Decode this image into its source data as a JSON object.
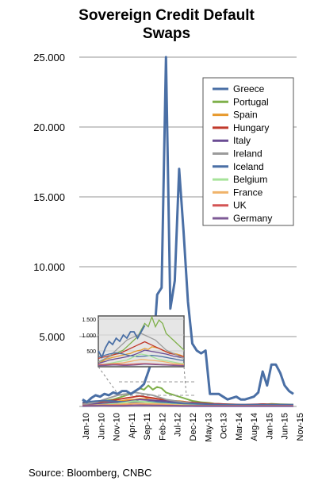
{
  "chart_data": {
    "type": "line",
    "title_lines": [
      "Sovereign Credit Default",
      "Swaps"
    ],
    "source": "Source: Bloomberg, CNBC",
    "ylim": [
      0,
      25000
    ],
    "y_ticks": [
      "5.000",
      "10.000",
      "15.000",
      "20.000",
      "25.000"
    ],
    "y_tick_values": [
      5000,
      10000,
      15000,
      20000,
      25000
    ],
    "x_tick_labels": [
      "Jan-10",
      "Jun-10",
      "Nov-10",
      "Apr-11",
      "Sep-11",
      "Feb-12",
      "Jul-12",
      "Dec-12",
      "May-13",
      "Oct-13",
      "Mar-14",
      "Aug-14",
      "Jan-15",
      "Jun-15",
      "Nov-15"
    ],
    "grid": true,
    "legend_position": "right",
    "series": [
      {
        "name": "Greece",
        "color": "#4a6fa5",
        "values": [
          500,
          300,
          600,
          800,
          700,
          900,
          800,
          1000,
          900,
          1100,
          1100,
          900,
          1100,
          1300,
          1600,
          2500,
          3500,
          8000,
          8500,
          25000,
          7000,
          9000,
          17000,
          12500,
          7500,
          4500,
          4000,
          3800,
          4000,
          900,
          900,
          900,
          700,
          500,
          600,
          700,
          500,
          500,
          600,
          700,
          1000,
          2500,
          1500,
          3000,
          3000,
          2400,
          1500,
          1100,
          900
        ]
      },
      {
        "name": "Portugal",
        "color": "#7fb04a",
        "values": [
          150,
          180,
          250,
          300,
          350,
          400,
          450,
          500,
          600,
          700,
          800,
          900,
          1100,
          1300,
          1200,
          1500,
          1200,
          1400,
          1300,
          1000,
          900,
          800,
          700,
          600,
          500,
          400,
          350,
          300,
          280,
          250,
          200,
          180,
          170,
          160,
          150,
          140,
          130,
          120,
          130,
          140,
          150,
          170,
          160,
          180,
          170,
          160,
          150,
          140,
          130
        ]
      },
      {
        "name": "Spain",
        "color": "#e79a2e",
        "values": [
          100,
          150,
          220,
          250,
          280,
          300,
          330,
          350,
          380,
          400,
          450,
          480,
          500,
          550,
          520,
          600,
          580,
          550,
          500,
          450,
          420,
          400,
          380,
          350,
          300,
          280,
          250,
          230,
          200,
          180,
          160,
          150,
          140,
          130,
          120,
          110,
          100,
          100,
          110,
          120,
          130,
          120,
          110,
          100,
          100,
          100,
          100,
          100,
          100
        ]
      },
      {
        "name": "Hungary",
        "color": "#c0392b",
        "values": [
          250,
          280,
          300,
          330,
          350,
          380,
          400,
          450,
          500,
          550,
          600,
          650,
          700,
          750,
          700,
          650,
          600,
          550,
          500,
          450,
          400,
          380,
          350,
          330,
          300,
          280,
          260,
          240,
          220,
          200,
          190,
          180,
          170,
          160,
          150,
          140,
          130,
          130,
          140,
          150,
          160,
          170,
          160,
          150,
          140,
          130,
          130,
          120,
          120
        ]
      },
      {
        "name": "Italy",
        "color": "#6a4c93",
        "values": [
          100,
          130,
          160,
          200,
          220,
          240,
          260,
          280,
          300,
          330,
          360,
          400,
          450,
          500,
          480,
          460,
          440,
          420,
          400,
          380,
          350,
          320,
          300,
          280,
          260,
          240,
          220,
          200,
          180,
          160,
          150,
          140,
          130,
          120,
          110,
          100,
          100,
          100,
          110,
          120,
          130,
          120,
          110,
          100,
          100,
          100,
          100,
          100,
          100
        ]
      },
      {
        "name": "Ireland",
        "color": "#9b9b9b",
        "values": [
          150,
          200,
          250,
          300,
          400,
          500,
          600,
          700,
          800,
          850,
          900,
          950,
          1000,
          950,
          900,
          850,
          800,
          700,
          600,
          500,
          450,
          400,
          350,
          300,
          250,
          200,
          180,
          160,
          140,
          120,
          110,
          100,
          100,
          90,
          80,
          70,
          60,
          60,
          70,
          80,
          90,
          80,
          70,
          60,
          60,
          60,
          60,
          60,
          60
        ]
      },
      {
        "name": "Iceland",
        "color": "#4a6fa5",
        "values": [
          300,
          320,
          350,
          380,
          400,
          420,
          400,
          380,
          350,
          330,
          320,
          300,
          310,
          320,
          330,
          340,
          330,
          320,
          300,
          280,
          260,
          240,
          220,
          200,
          190,
          180,
          170,
          160,
          150,
          140,
          130,
          130,
          130,
          130,
          130,
          130,
          130,
          130,
          130,
          130,
          130,
          130,
          130,
          130,
          130,
          130,
          130,
          130,
          130
        ]
      },
      {
        "name": "Belgium",
        "color": "#a6e39a",
        "values": [
          50,
          60,
          80,
          100,
          120,
          140,
          160,
          180,
          200,
          250,
          300,
          350,
          380,
          360,
          340,
          300,
          260,
          220,
          200,
          180,
          160,
          140,
          120,
          100,
          90,
          80,
          70,
          60,
          55,
          50,
          50,
          50,
          50,
          50,
          50,
          50,
          50,
          50,
          50,
          50,
          50,
          50,
          50,
          50,
          50,
          50,
          50,
          50,
          50
        ]
      },
      {
        "name": "France",
        "color": "#f0b36a",
        "values": [
          50,
          60,
          70,
          80,
          90,
          100,
          110,
          120,
          140,
          160,
          180,
          200,
          220,
          210,
          200,
          190,
          180,
          170,
          160,
          140,
          120,
          100,
          90,
          80,
          70,
          60,
          55,
          50,
          45,
          40,
          40,
          40,
          40,
          40,
          40,
          40,
          40,
          40,
          40,
          40,
          40,
          40,
          40,
          40,
          40,
          40,
          40,
          40,
          40
        ]
      },
      {
        "name": "UK",
        "color": "#d35454",
        "values": [
          60,
          65,
          70,
          75,
          80,
          80,
          75,
          70,
          70,
          75,
          80,
          85,
          90,
          95,
          90,
          85,
          80,
          75,
          70,
          65,
          60,
          55,
          50,
          45,
          40,
          40,
          40,
          40,
          40,
          40,
          40,
          40,
          40,
          40,
          40,
          40,
          40,
          40,
          40,
          40,
          40,
          40,
          40,
          40,
          40,
          40,
          40,
          40,
          40
        ]
      },
      {
        "name": "Germany",
        "color": "#7e5a96",
        "values": [
          30,
          35,
          40,
          45,
          50,
          50,
          45,
          40,
          40,
          45,
          50,
          60,
          70,
          80,
          75,
          70,
          65,
          60,
          55,
          50,
          45,
          40,
          35,
          30,
          28,
          26,
          24,
          22,
          20,
          20,
          20,
          20,
          20,
          20,
          20,
          20,
          20,
          20,
          20,
          20,
          20,
          20,
          20,
          20,
          20,
          20,
          20,
          20,
          20
        ]
      }
    ],
    "inset": {
      "y_ticks": [
        "500",
        "1.000",
        "1.500"
      ],
      "y_tick_values": [
        500,
        1000,
        1500
      ]
    }
  }
}
